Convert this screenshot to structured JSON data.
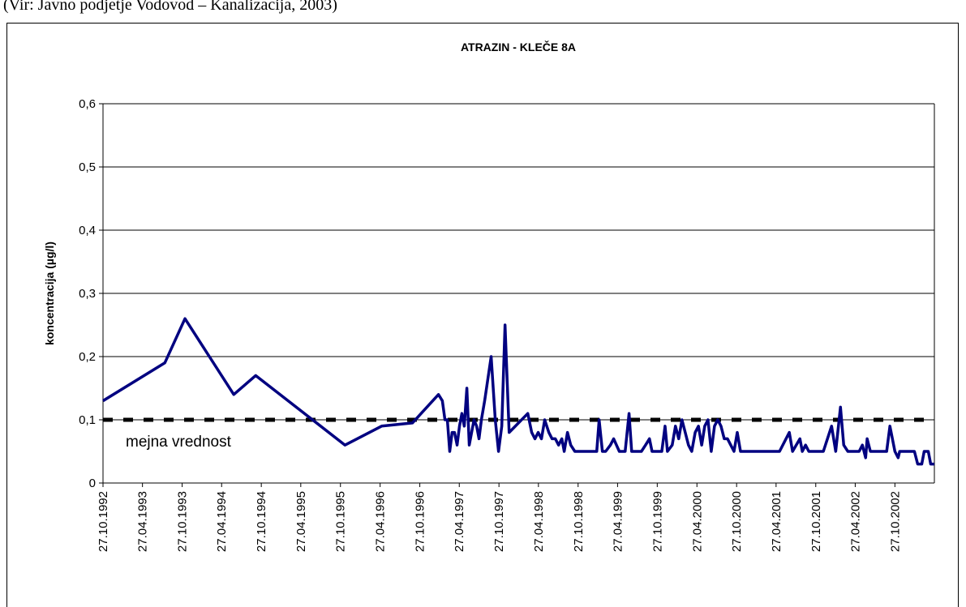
{
  "source": "(Vir: Javno podjetje Vodovod – Kanalizacija, 2003)",
  "chart_data": {
    "type": "line",
    "title": "ATRAZIN - KLEČE 8A",
    "ylabel": "koncentracija (µg/l)",
    "color": "#000080",
    "grid": true,
    "threshold": {
      "value": 0.1,
      "label": "mejna vrednost",
      "color": "#000000"
    },
    "xlim": [
      "1992-10-27",
      "2003-04-27"
    ],
    "xticks": [
      {
        "value": "1992-10-27",
        "label": "27.10.1992"
      },
      {
        "value": "1993-04-27",
        "label": "27.04.1993"
      },
      {
        "value": "1993-10-27",
        "label": "27.10.1993"
      },
      {
        "value": "1994-04-27",
        "label": "27.04.1994"
      },
      {
        "value": "1994-10-27",
        "label": "27.10.1994"
      },
      {
        "value": "1995-04-27",
        "label": "27.04.1995"
      },
      {
        "value": "1995-10-27",
        "label": "27.10.1995"
      },
      {
        "value": "1996-04-27",
        "label": "27.04.1996"
      },
      {
        "value": "1996-10-27",
        "label": "27.10.1996"
      },
      {
        "value": "1997-04-27",
        "label": "27.04.1997"
      },
      {
        "value": "1997-10-27",
        "label": "27.10.1997"
      },
      {
        "value": "1998-04-27",
        "label": "27.04.1998"
      },
      {
        "value": "1998-10-27",
        "label": "27.10.1998"
      },
      {
        "value": "1999-04-27",
        "label": "27.04.1999"
      },
      {
        "value": "1999-10-27",
        "label": "27.10.1999"
      },
      {
        "value": "2000-04-27",
        "label": "27.04.2000"
      },
      {
        "value": "2000-10-27",
        "label": "27.10.2000"
      },
      {
        "value": "2001-04-27",
        "label": "27.04.2001"
      },
      {
        "value": "2001-10-27",
        "label": "27.10.2001"
      },
      {
        "value": "2002-04-27",
        "label": "27.04.2002"
      },
      {
        "value": "2002-10-27",
        "label": "27.10.2002"
      }
    ],
    "ylim": [
      0,
      0.6
    ],
    "yticks": [
      0,
      {
        "value": 0.1,
        "label": "0,1"
      },
      {
        "value": 0.2,
        "label": "0,2"
      },
      {
        "value": 0.3,
        "label": "0,3"
      },
      {
        "value": 0.4,
        "label": "0,4"
      },
      {
        "value": 0.5,
        "label": "0,5"
      },
      {
        "value": 0.6,
        "label": "0,6"
      }
    ],
    "x": [
      "1992-10-27",
      "1993-08-08",
      "1993-11-09",
      "1994-06-22",
      "1994-10-01",
      "1995-11-17",
      "1996-05-04",
      "1996-09-23",
      "1997-01-21",
      "1997-02-08",
      "1997-02-20",
      "1997-03-03",
      "1997-03-14",
      "1997-03-25",
      "1997-04-05",
      "1997-04-17",
      "1997-04-28",
      "1997-05-09",
      "1997-05-20",
      "1997-06-01",
      "1997-06-12",
      "1997-06-23",
      "1997-07-04",
      "1997-07-16",
      "1997-07-27",
      "1997-08-07",
      "1997-08-22",
      "1997-09-21",
      "1997-10-10",
      "1997-10-25",
      "1997-11-09",
      "1997-11-24",
      "1997-12-13",
      "1998-03-09",
      "1998-03-27",
      "1998-04-11",
      "1998-04-26",
      "1998-05-11",
      "1998-05-26",
      "1998-06-14",
      "1998-06-29",
      "1998-07-14",
      "1998-07-29",
      "1998-08-13",
      "1998-08-24",
      "1998-09-08",
      "1998-09-23",
      "1998-10-12",
      "1999-01-21",
      "1999-02-01",
      "1999-02-16",
      "1999-03-03",
      "1999-03-25",
      "1999-04-09",
      "1999-05-05",
      "1999-06-01",
      "1999-06-19",
      "1999-07-01",
      "1999-08-15",
      "1999-09-03",
      "1999-09-21",
      "1999-10-03",
      "1999-11-17",
      "1999-12-02",
      "1999-12-13",
      "2000-01-04",
      "2000-01-19",
      "2000-02-03",
      "2000-02-18",
      "2000-03-04",
      "2000-03-19",
      "2000-04-03",
      "2000-04-19",
      "2000-05-04",
      "2000-05-19",
      "2000-06-02",
      "2000-06-17",
      "2000-07-02",
      "2000-07-17",
      "2000-08-01",
      "2000-08-16",
      "2000-08-31",
      "2000-09-15",
      "2000-09-30",
      "2000-10-15",
      "2000-10-30",
      "2000-11-14",
      "2001-05-13",
      "2001-06-27",
      "2001-07-12",
      "2001-08-15",
      "2001-08-26",
      "2001-09-10",
      "2001-09-25",
      "2001-12-01",
      "2002-01-08",
      "2002-01-27",
      "2002-02-18",
      "2002-03-05",
      "2002-03-24",
      "2002-05-15",
      "2002-05-30",
      "2002-06-14",
      "2002-06-21",
      "2002-07-06",
      "2002-09-19",
      "2002-10-04",
      "2002-10-27",
      "2002-11-11",
      "2002-11-18",
      "2003-01-25",
      "2003-02-09",
      "2003-02-28",
      "2003-03-11",
      "2003-03-30",
      "2003-04-10",
      "2003-04-27"
    ],
    "values": [
      0.13,
      0.19,
      0.26,
      0.14,
      0.17,
      0.06,
      0.09,
      0.095,
      0.14,
      0.13,
      0.1,
      0.1,
      0.05,
      0.08,
      0.08,
      0.06,
      0.09,
      0.11,
      0.09,
      0.15,
      0.06,
      0.08,
      0.1,
      0.09,
      0.07,
      0.1,
      0.13,
      0.2,
      0.1,
      0.05,
      0.09,
      0.25,
      0.08,
      0.11,
      0.08,
      0.07,
      0.08,
      0.07,
      0.1,
      0.08,
      0.07,
      0.07,
      0.06,
      0.07,
      0.05,
      0.08,
      0.06,
      0.05,
      0.05,
      0.1,
      0.05,
      0.05,
      0.06,
      0.07,
      0.05,
      0.05,
      0.11,
      0.05,
      0.05,
      0.06,
      0.07,
      0.05,
      0.05,
      0.09,
      0.05,
      0.06,
      0.09,
      0.07,
      0.1,
      0.08,
      0.06,
      0.05,
      0.08,
      0.09,
      0.06,
      0.09,
      0.1,
      0.05,
      0.09,
      0.1,
      0.09,
      0.07,
      0.07,
      0.06,
      0.05,
      0.08,
      0.05,
      0.05,
      0.08,
      0.05,
      0.07,
      0.05,
      0.06,
      0.05,
      0.05,
      0.09,
      0.05,
      0.12,
      0.06,
      0.05,
      0.05,
      0.06,
      0.04,
      0.07,
      0.05,
      0.05,
      0.09,
      0.05,
      0.04,
      0.05,
      0.05,
      0.03,
      0.03,
      0.05,
      0.05,
      0.03,
      0.03
    ]
  }
}
